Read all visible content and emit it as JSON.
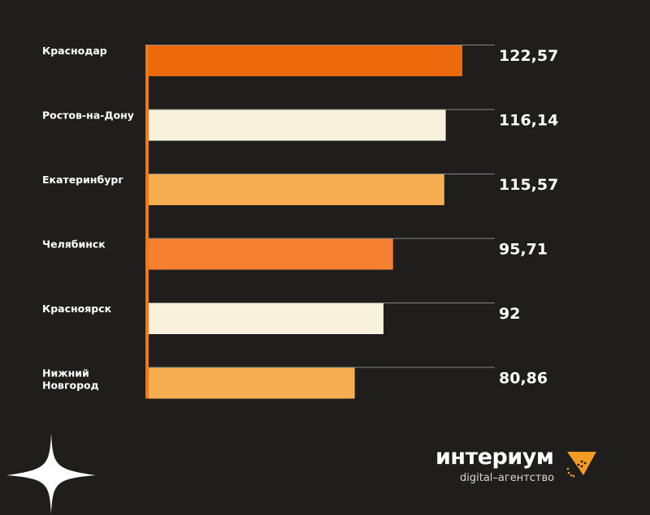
{
  "chart_data": {
    "type": "bar",
    "orientation": "horizontal",
    "categories": [
      "Краснодар",
      "Ростов-на-Дону",
      "Екатеринбург",
      "Челябинск",
      "Красноярск",
      "Нижний Новгород"
    ],
    "values": [
      122.57,
      116.14,
      115.57,
      95.71,
      92,
      80.86
    ],
    "value_labels": [
      "122,57",
      "116,14",
      "115,57",
      "95,71",
      "92",
      "80,86"
    ],
    "bar_colors": [
      "#ed6a0c",
      "#f8f1dc",
      "#f7ae52",
      "#f58030",
      "#f8f1dc",
      "#f7ae52"
    ],
    "axis_color": "#f07a1a",
    "xlim": [
      0,
      130
    ],
    "title": "",
    "xlabel": "",
    "ylabel": "",
    "grid": false,
    "legend": "none"
  },
  "brand": {
    "name": "интериум",
    "tagline": "digital–агентство",
    "accent_color": "#f59a23"
  },
  "decor": {
    "sparkle_icon": "four-point-star-icon",
    "logo_icon": "triangle-dots-icon"
  }
}
